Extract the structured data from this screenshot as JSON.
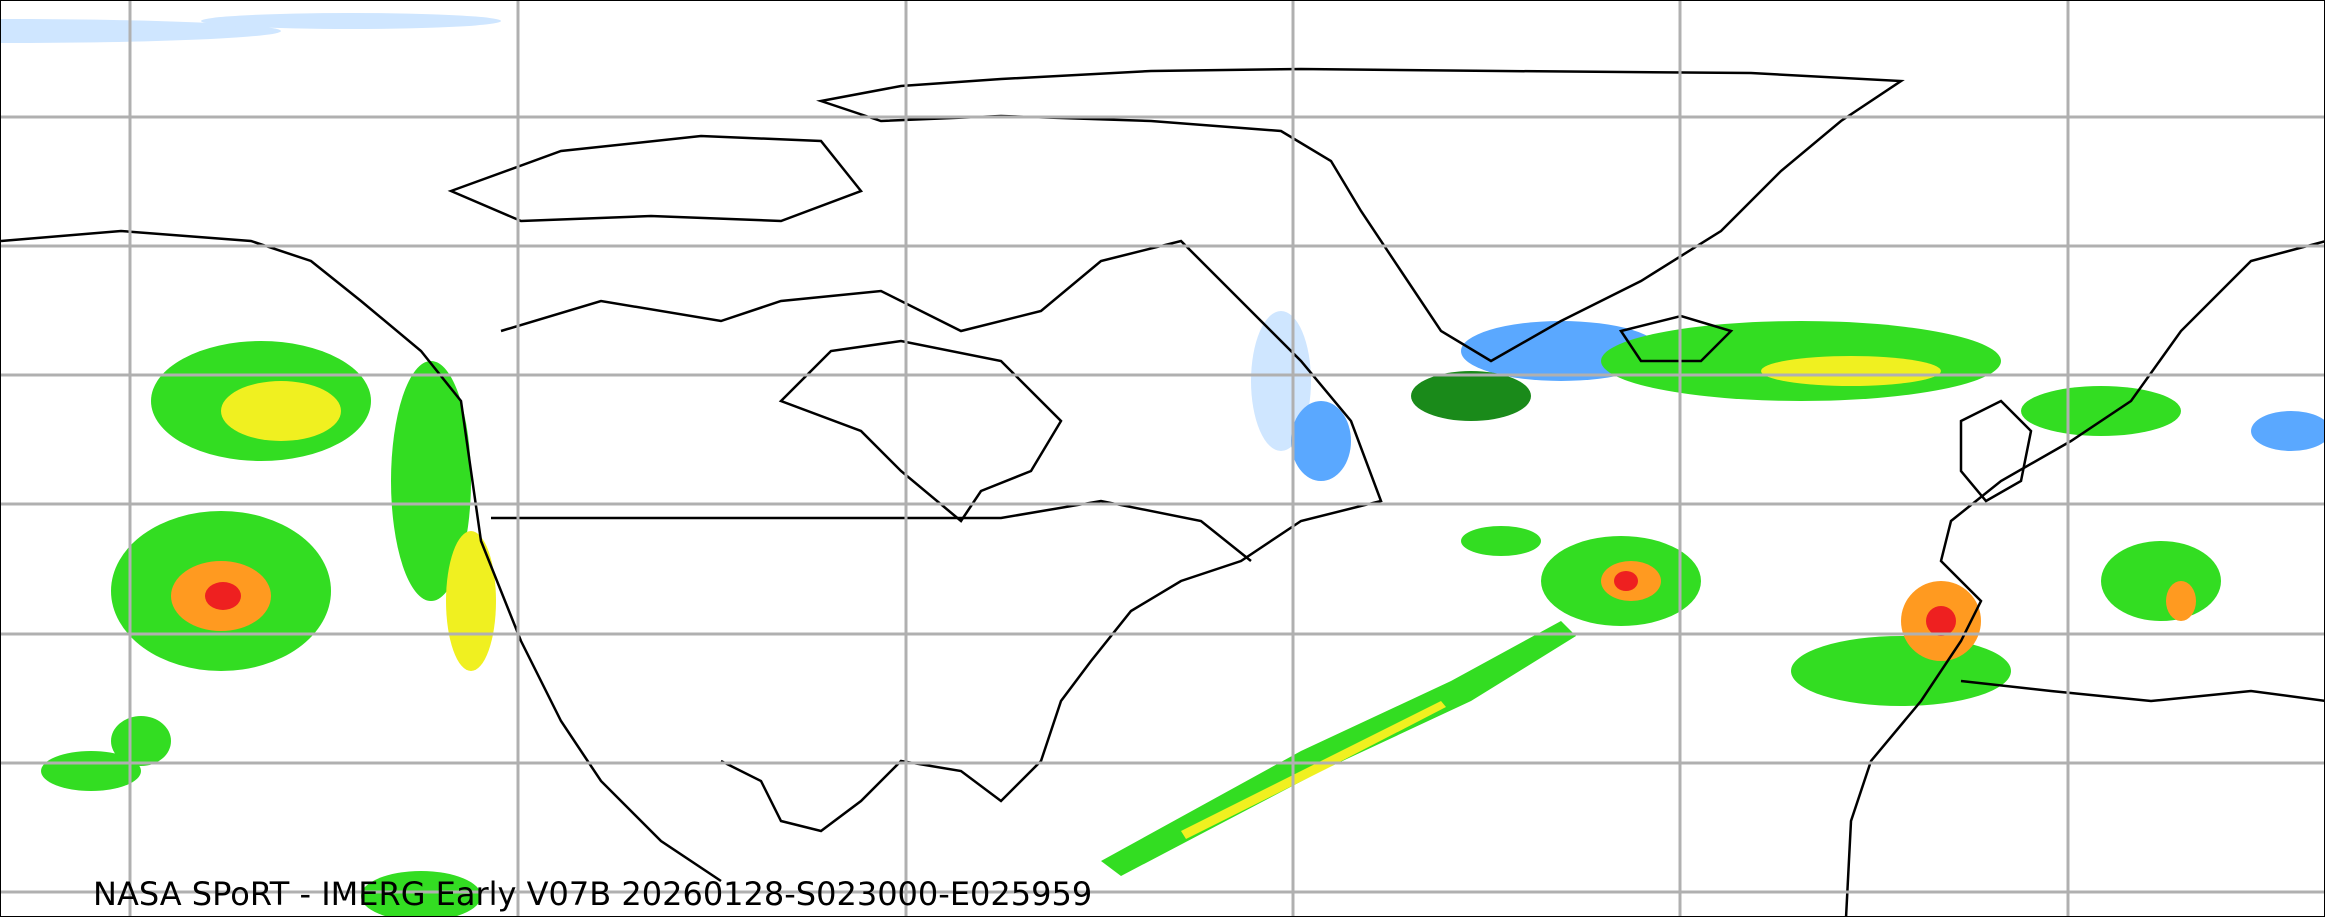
{
  "map": {
    "caption": "NASA SPoRT - IMERG Early V07B 20260128-S023000-E025959",
    "product": "IMERG Early V07B",
    "projection": "equirectangular",
    "region": "North America / North Atlantic / Europe",
    "gridlines": true,
    "colors": {
      "gridline": "#b0b0b0",
      "coastline": "#000000",
      "precip_light_blue": "#cfe6ff",
      "precip_blue": "#5aa8ff",
      "precip_dark_green": "#1a8a1a",
      "precip_green": "#33dd22",
      "precip_yellow": "#f0f020",
      "precip_orange": "#ff9a20",
      "precip_red": "#ee2020",
      "precip_magenta": "#ff40ff"
    }
  }
}
